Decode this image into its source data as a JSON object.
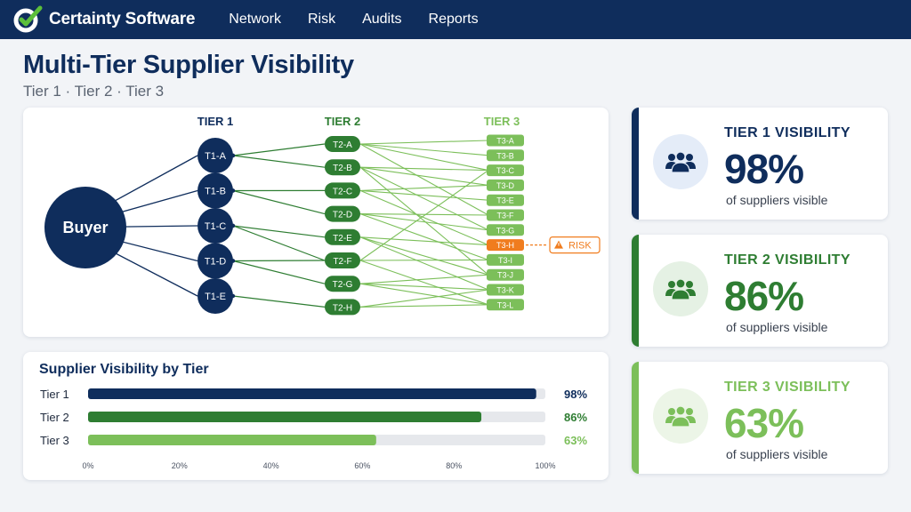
{
  "header": {
    "brand_name": "Certainty Software",
    "nav": [
      "Network",
      "Risk",
      "Audits",
      "Reports"
    ]
  },
  "page": {
    "title": "Multi-Tier Supplier Visibility",
    "subtitle": "Tier 1 · Tier 2 · Tier 3"
  },
  "network": {
    "buyer_label": "Buyer",
    "tier_headers": [
      "TIER 1",
      "TIER 2",
      "TIER 3"
    ],
    "tier1": [
      "T1-A",
      "T1-B",
      "T1-C",
      "T1-D",
      "T1-E"
    ],
    "tier2": [
      "T2-A",
      "T2-B",
      "T2-C",
      "T2-D",
      "T2-E",
      "T2-F",
      "T2-G",
      "T2-H"
    ],
    "tier3": [
      "T3-A",
      "T3-B",
      "T3-C",
      "T3-D",
      "T3-E",
      "T3-F",
      "T3-G",
      "T3-H",
      "T3-I",
      "T3-J",
      "T3-K",
      "T3-L"
    ],
    "risk_node": "T3-H",
    "risk_label": "RISK",
    "links_t1_t2": [
      [
        0,
        0
      ],
      [
        0,
        1
      ],
      [
        1,
        2
      ],
      [
        1,
        3
      ],
      [
        2,
        4
      ],
      [
        2,
        5
      ],
      [
        3,
        5
      ],
      [
        3,
        6
      ],
      [
        4,
        7
      ]
    ],
    "links_t2_t3": [
      [
        0,
        0
      ],
      [
        0,
        1
      ],
      [
        0,
        2
      ],
      [
        0,
        5
      ],
      [
        1,
        2
      ],
      [
        1,
        3
      ],
      [
        1,
        6
      ],
      [
        2,
        3
      ],
      [
        2,
        4
      ],
      [
        2,
        7
      ],
      [
        3,
        5
      ],
      [
        3,
        6
      ],
      [
        3,
        8
      ],
      [
        4,
        7
      ],
      [
        4,
        9
      ],
      [
        4,
        10
      ],
      [
        5,
        8
      ],
      [
        5,
        11
      ],
      [
        5,
        2
      ],
      [
        6,
        9
      ],
      [
        6,
        10
      ],
      [
        6,
        11
      ],
      [
        7,
        11
      ],
      [
        7,
        10
      ],
      [
        1,
        9
      ]
    ],
    "colors": {
      "navy": "#0f2d5c",
      "tier2": "#2e7d32",
      "tier3": "#7cbf5a",
      "risk": "#f07c1e"
    }
  },
  "chart_data": {
    "type": "bar",
    "title": "Supplier Visibility by Tier",
    "orientation": "horizontal",
    "categories": [
      "Tier 1",
      "Tier 2",
      "Tier 3"
    ],
    "values": [
      98,
      86,
      63
    ],
    "value_labels": [
      "98%",
      "86%",
      "63%"
    ],
    "xlim": [
      0,
      100
    ],
    "x_ticks": [
      "0%",
      "20%",
      "40%",
      "60%",
      "80%",
      "100%"
    ],
    "colors": [
      "#0f2d5c",
      "#2e7d32",
      "#7cbf5a"
    ],
    "track_color": "#e6e8ec"
  },
  "kpis": [
    {
      "label": "TIER 1 VISIBILITY",
      "value": "98%",
      "caption": "of suppliers visible",
      "icon": "users-icon",
      "color": "#0f2d5c",
      "circle_bg": "#e4ecf8"
    },
    {
      "label": "TIER 2 VISIBILITY",
      "value": "86%",
      "caption": "of suppliers visible",
      "icon": "users-icon",
      "color": "#2e7d32",
      "circle_bg": "#e5f1e4"
    },
    {
      "label": "TIER 3 VISIBILITY",
      "value": "63%",
      "caption": "of suppliers visible",
      "icon": "users-icon",
      "color": "#7cbf5a",
      "circle_bg": "#ecf5e7"
    }
  ]
}
